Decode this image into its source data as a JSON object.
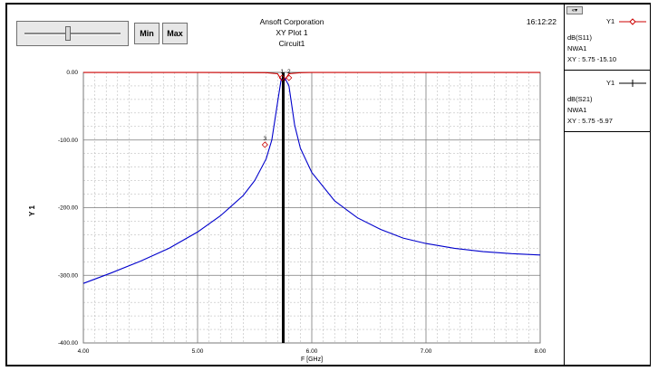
{
  "header": {
    "company": "Ansoft Corporation",
    "plot_name": "XY Plot 1",
    "design": "Circuit1",
    "time": "16:12:22"
  },
  "controls": {
    "min_label": "Min",
    "max_label": "Max",
    "scroll_glyph": "«▾",
    "slider_value": 0.45
  },
  "legend": {
    "entries": [
      {
        "axis": "Y1",
        "trace": "dB(S11)",
        "source": "NWA1",
        "readout": "XY : 5.75 -15.10",
        "color": "#cc0000",
        "marker": "diamond"
      },
      {
        "axis": "Y1",
        "trace": "dB(S21)",
        "source": "NWA1",
        "readout": "XY : 5.75 -5.97",
        "color": "#000000",
        "marker": "plus"
      }
    ]
  },
  "chart_data": {
    "type": "line",
    "xlabel": "F [GHz]",
    "ylabel": "Y 1",
    "xlim": [
      4.0,
      8.0
    ],
    "ylim": [
      -400.0,
      0.0
    ],
    "x_ticks": [
      "4.00",
      "5.00",
      "6.00",
      "7.00",
      "8.00"
    ],
    "y_ticks": [
      "0.00",
      "-100.00",
      "-200.00",
      "-300.00",
      "-400.00"
    ],
    "grid": true,
    "series": [
      {
        "name": "dB(S11)",
        "color": "#cc0000",
        "x": [
          4.0,
          5.0,
          5.6,
          5.7,
          5.75,
          5.8,
          5.9,
          6.0,
          7.0,
          8.0
        ],
        "y": [
          -0.2,
          -0.2,
          -0.4,
          -2.0,
          -15.1,
          -2.0,
          -0.4,
          -0.2,
          -0.2,
          -0.2
        ]
      },
      {
        "name": "dB(S21)",
        "color": "#0000cc",
        "x": [
          4.0,
          4.25,
          4.5,
          4.75,
          5.0,
          5.2,
          5.4,
          5.5,
          5.6,
          5.65,
          5.7,
          5.73,
          5.75,
          5.77,
          5.8,
          5.85,
          5.9,
          6.0,
          6.2,
          6.4,
          6.6,
          6.8,
          7.0,
          7.25,
          7.5,
          7.75,
          8.0
        ],
        "y": [
          -312,
          -296,
          -279,
          -260,
          -236,
          -212,
          -182,
          -160,
          -128,
          -100,
          -45,
          -12,
          -5.97,
          -10,
          -20,
          -78,
          -112,
          -148,
          -190,
          -215,
          -232,
          -245,
          -253,
          -260,
          -265,
          -268,
          -270
        ]
      }
    ],
    "vertical_marker": {
      "x": 5.75
    },
    "markers": [
      {
        "label": "1",
        "x": 5.74,
        "y": -8
      },
      {
        "label": "2",
        "x": 5.8,
        "y": -8
      },
      {
        "label": "3",
        "x": 5.59,
        "y": -107
      }
    ]
  }
}
